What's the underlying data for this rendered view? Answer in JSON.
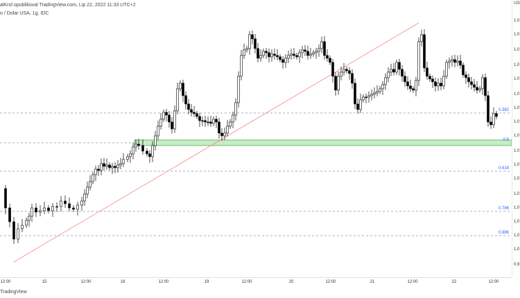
{
  "header": {
    "author_line": "alKrol opublikoval TradingView.com, Lip 22, 2022 11:33 UTC+2",
    "symbol_line": "o / Dolar USA, 1g, IDC"
  },
  "y_axis": {
    "currency": "USD",
    "labels": [
      "1,0",
      "1,0",
      "1,0",
      "1,0",
      "1,0",
      "1,0",
      "1,0",
      "1,0",
      "1,0",
      "1,0",
      "1,0",
      "1,0",
      "1,0",
      "1,0",
      "1,0",
      "1,0",
      "1,0",
      "0,9",
      "0,9",
      "0,9",
      "0,9"
    ]
  },
  "x_axis": {
    "labels": [
      "12:00",
      "15",
      "12:00",
      "18",
      "12:00",
      "19",
      "12:00",
      "20",
      "12:00",
      "21",
      "12:00",
      "22",
      "12:00"
    ]
  },
  "fibonacci": {
    "levels": [
      {
        "label": "0.382",
        "color": "#2962ff"
      },
      {
        "label": "0.5",
        "color": "#2962ff"
      },
      {
        "label": "0.618",
        "color": "#2962ff"
      },
      {
        "label": "0.786",
        "color": "#2962ff"
      },
      {
        "label": "0.886",
        "color": "#2962ff"
      }
    ]
  },
  "colors": {
    "candle": "#000000",
    "trendline": "#f28b82",
    "zone_fill": "#c8ecc6",
    "zone_border": "#4caf50",
    "fib_line": "#8a93a8"
  },
  "footer": {
    "brand": "TradingView"
  }
}
